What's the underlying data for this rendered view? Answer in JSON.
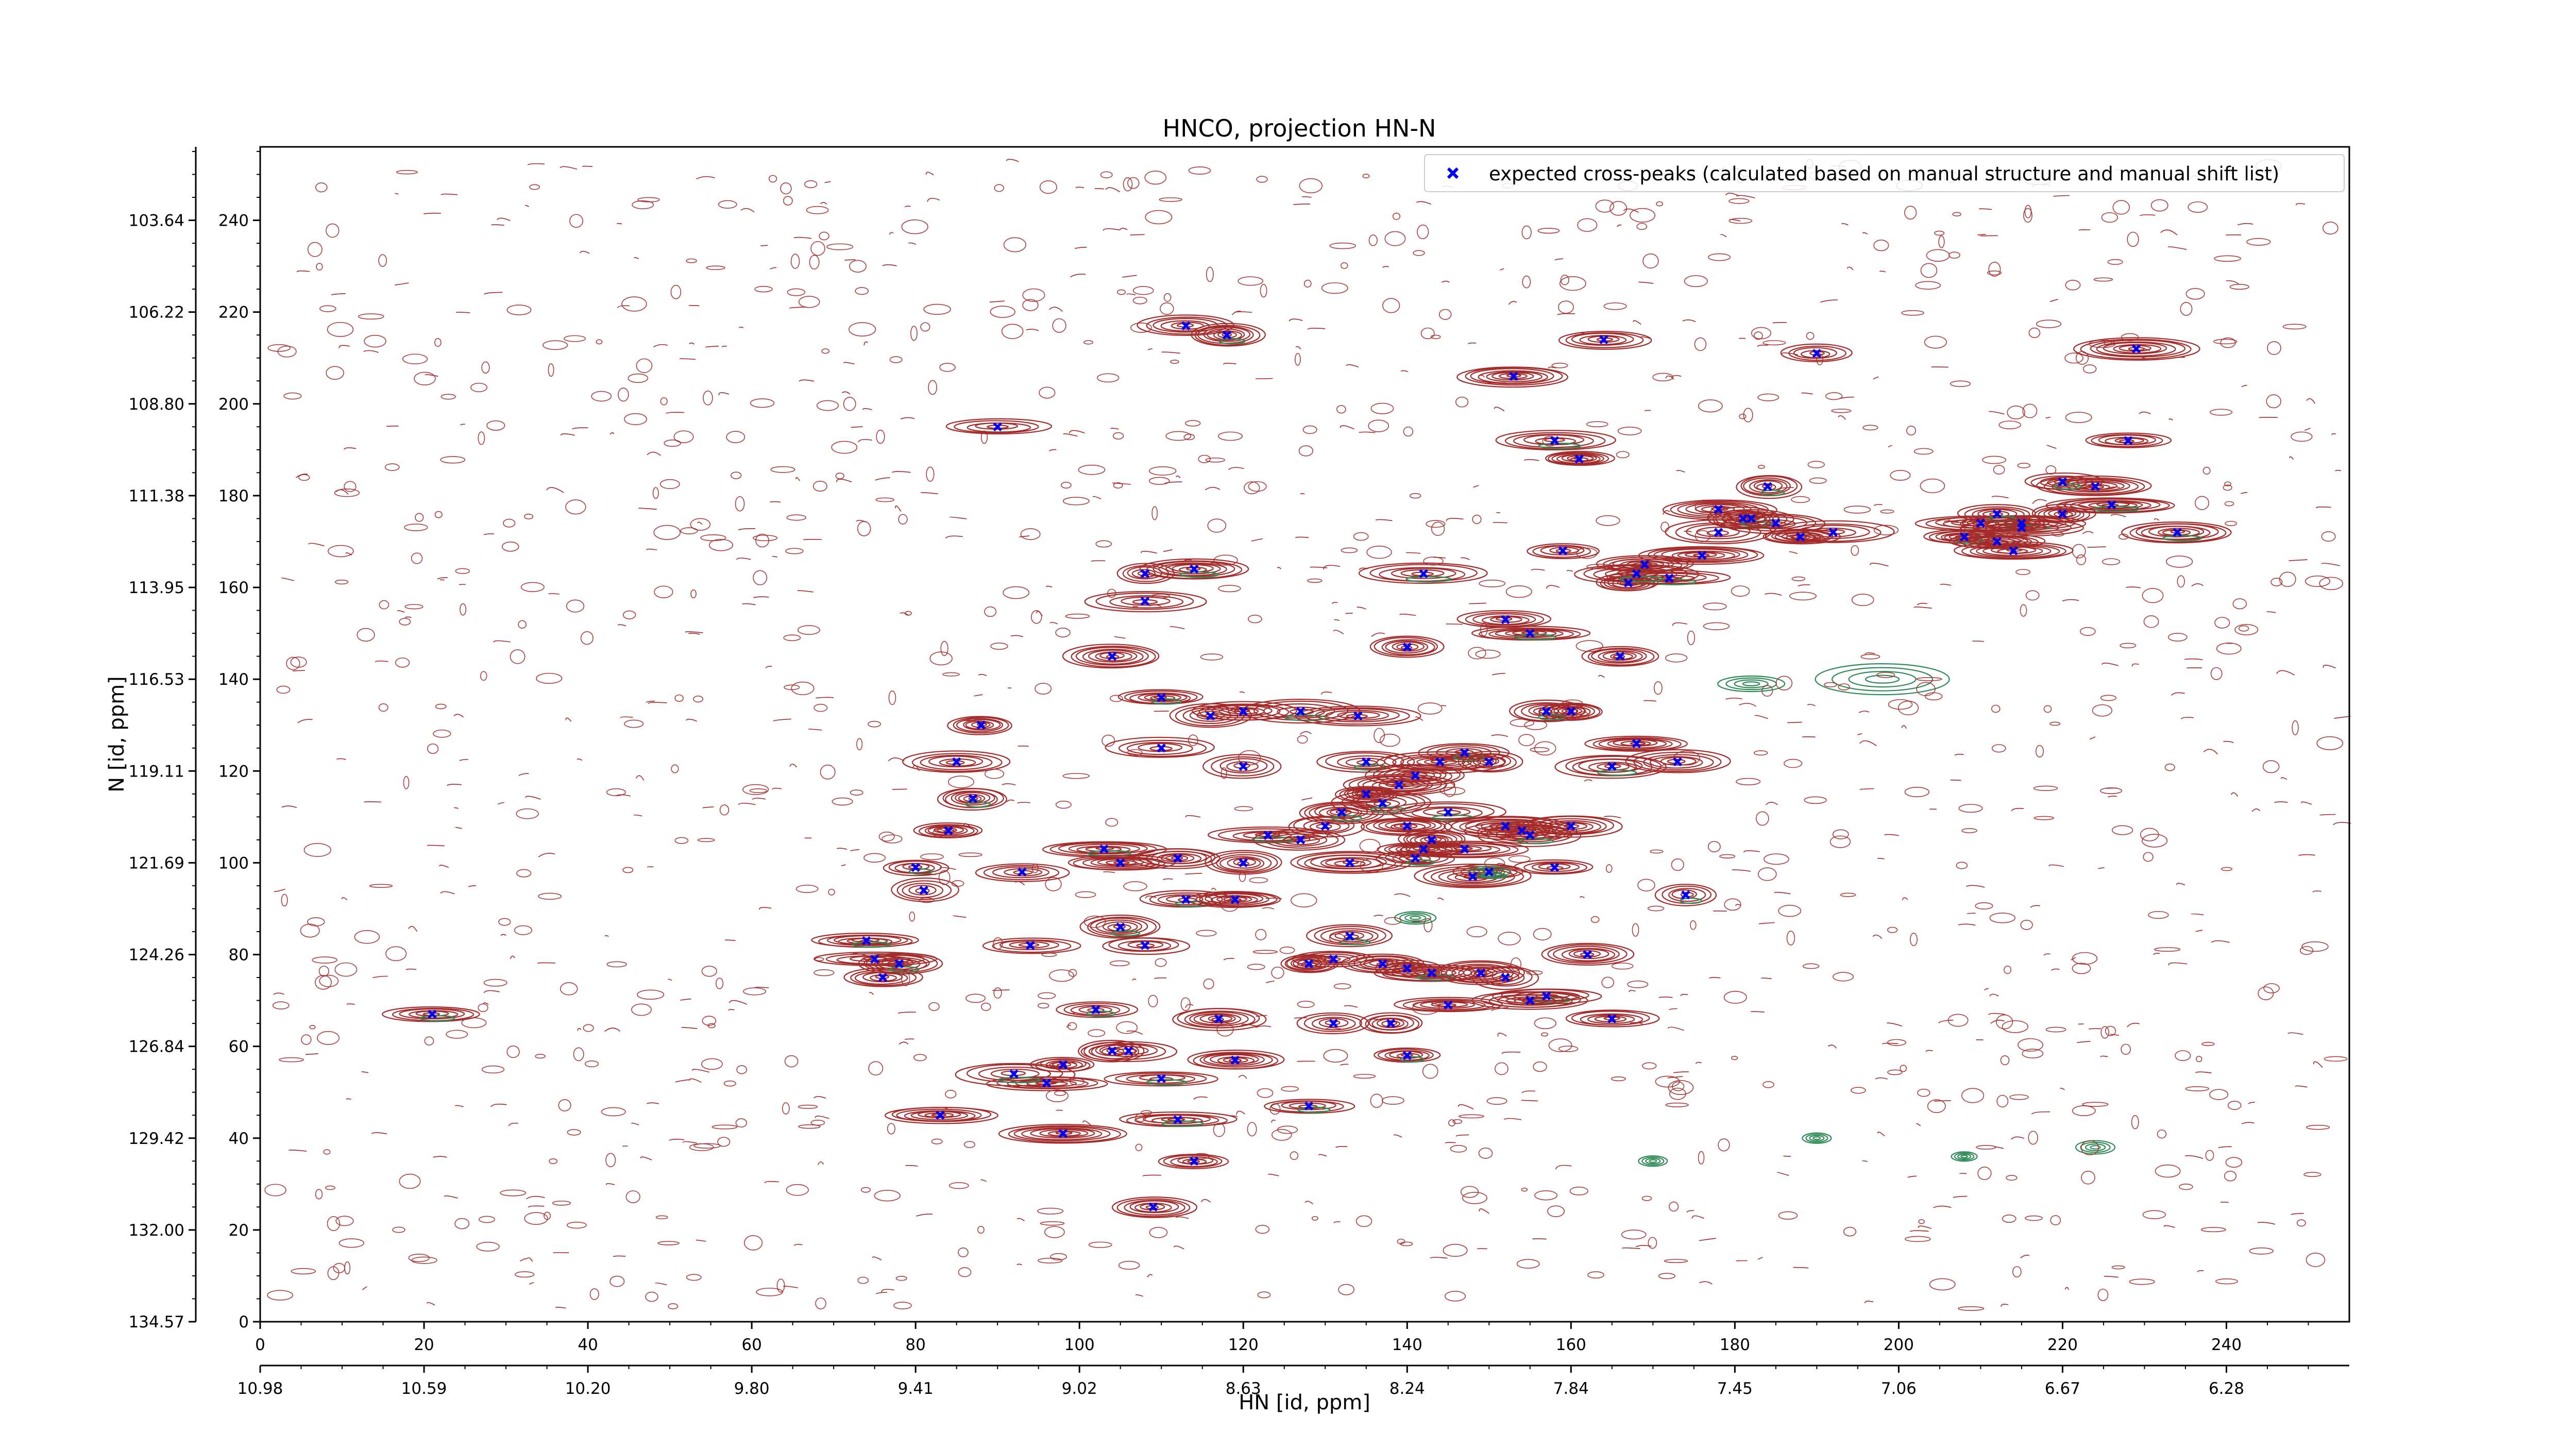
{
  "chart_data": {
    "type": "scatter",
    "title": "HNCO, projection HN-N",
    "xlabel": "HN [id, ppm]",
    "ylabel": "N [id, ppm]",
    "xlim": [
      0,
      255
    ],
    "ylim": [
      0,
      256
    ],
    "x_index_ticks": [
      0,
      20,
      40,
      60,
      80,
      100,
      120,
      140,
      160,
      180,
      200,
      220,
      240
    ],
    "y_index_ticks": [
      0,
      20,
      40,
      60,
      80,
      100,
      120,
      140,
      160,
      180,
      200,
      220,
      240
    ],
    "x_ppm_ticks": [
      "10.98",
      "10.59",
      "10.20",
      "9.80",
      "9.41",
      "9.02",
      "8.63",
      "8.24",
      "7.84",
      "7.45",
      "7.06",
      "6.67",
      "6.28"
    ],
    "y_ppm_ticks": [
      "134.57",
      "132.00",
      "129.42",
      "126.84",
      "124.26",
      "121.69",
      "119.11",
      "116.53",
      "113.95",
      "111.38",
      "108.80",
      "106.22",
      "103.64"
    ],
    "grid": false,
    "legend_position": "top-right",
    "colors": {
      "marker": "#0000ff",
      "positive_contour": "#a52a2a",
      "negative_contour": "#2e8b57"
    },
    "series": [
      {
        "name": "expected cross-peaks (calculated based on manual structure and manual shift list)",
        "marker": "x",
        "points": [
          [
            21,
            67
          ],
          [
            90,
            195
          ],
          [
            113,
            217
          ],
          [
            118,
            215
          ],
          [
            164,
            214
          ],
          [
            153,
            206
          ],
          [
            158,
            192
          ],
          [
            161,
            188
          ],
          [
            108,
            163
          ],
          [
            114,
            164
          ],
          [
            108,
            157
          ],
          [
            104,
            145
          ],
          [
            142,
            163
          ],
          [
            140,
            147
          ],
          [
            152,
            153
          ],
          [
            155,
            150
          ],
          [
            159,
            168
          ],
          [
            166,
            145
          ],
          [
            110,
            136
          ],
          [
            116,
            132
          ],
          [
            120,
            133
          ],
          [
            127,
            133
          ],
          [
            134,
            132
          ],
          [
            160,
            133
          ],
          [
            157,
            133
          ],
          [
            88,
            130
          ],
          [
            85,
            122
          ],
          [
            87,
            114
          ],
          [
            110,
            125
          ],
          [
            120,
            121
          ],
          [
            135,
            122
          ],
          [
            141,
            119
          ],
          [
            144,
            122
          ],
          [
            147,
            124
          ],
          [
            150,
            122
          ],
          [
            168,
            126
          ],
          [
            165,
            121
          ],
          [
            173,
            122
          ],
          [
            84,
            107
          ],
          [
            80,
            99
          ],
          [
            81,
            94
          ],
          [
            93,
            98
          ],
          [
            103,
            103
          ],
          [
            105,
            100
          ],
          [
            112,
            101
          ],
          [
            113,
            92
          ],
          [
            119,
            92
          ],
          [
            120,
            100
          ],
          [
            123,
            106
          ],
          [
            127,
            105
          ],
          [
            130,
            108
          ],
          [
            132,
            111
          ],
          [
            133,
            100
          ],
          [
            135,
            115
          ],
          [
            137,
            113
          ],
          [
            139,
            117
          ],
          [
            140,
            108
          ],
          [
            141,
            101
          ],
          [
            142,
            103
          ],
          [
            143,
            105
          ],
          [
            145,
            111
          ],
          [
            147,
            103
          ],
          [
            148,
            97
          ],
          [
            150,
            98
          ],
          [
            152,
            108
          ],
          [
            154,
            107
          ],
          [
            155,
            106
          ],
          [
            160,
            108
          ],
          [
            158,
            99
          ],
          [
            105,
            86
          ],
          [
            108,
            82
          ],
          [
            94,
            82
          ],
          [
            74,
            83
          ],
          [
            75,
            79
          ],
          [
            76,
            75
          ],
          [
            78,
            78
          ],
          [
            128,
            78
          ],
          [
            131,
            79
          ],
          [
            133,
            84
          ],
          [
            137,
            78
          ],
          [
            140,
            77
          ],
          [
            143,
            76
          ],
          [
            149,
            76
          ],
          [
            152,
            75
          ],
          [
            157,
            71
          ],
          [
            162,
            80
          ],
          [
            165,
            66
          ],
          [
            174,
            93
          ],
          [
            117,
            66
          ],
          [
            119,
            57
          ],
          [
            110,
            53
          ],
          [
            104,
            59
          ],
          [
            106,
            59
          ],
          [
            102,
            68
          ],
          [
            98,
            56
          ],
          [
            96,
            52
          ],
          [
            92,
            54
          ],
          [
            83,
            45
          ],
          [
            98,
            41
          ],
          [
            112,
            44
          ],
          [
            114,
            35
          ],
          [
            109,
            25
          ],
          [
            128,
            47
          ],
          [
            131,
            65
          ],
          [
            138,
            65
          ],
          [
            140,
            58
          ],
          [
            145,
            69
          ],
          [
            155,
            70
          ],
          [
            172,
            162
          ],
          [
            176,
            167
          ],
          [
            178,
            172
          ],
          [
            184,
            182
          ],
          [
            190,
            211
          ],
          [
            192,
            172
          ],
          [
            208,
            171
          ],
          [
            212,
            170
          ],
          [
            214,
            168
          ],
          [
            215,
            174
          ],
          [
            220,
            176
          ],
          [
            224,
            182
          ],
          [
            226,
            178
          ],
          [
            228,
            192
          ],
          [
            229,
            212
          ],
          [
            234,
            172
          ],
          [
            178,
            177
          ],
          [
            181,
            175
          ],
          [
            182,
            175
          ],
          [
            185,
            174
          ],
          [
            210,
            174
          ],
          [
            212,
            176
          ],
          [
            215,
            173
          ],
          [
            167,
            161
          ],
          [
            168,
            163
          ],
          [
            169,
            165
          ],
          [
            188,
            171
          ],
          [
            220,
            183
          ]
        ]
      }
    ]
  }
}
